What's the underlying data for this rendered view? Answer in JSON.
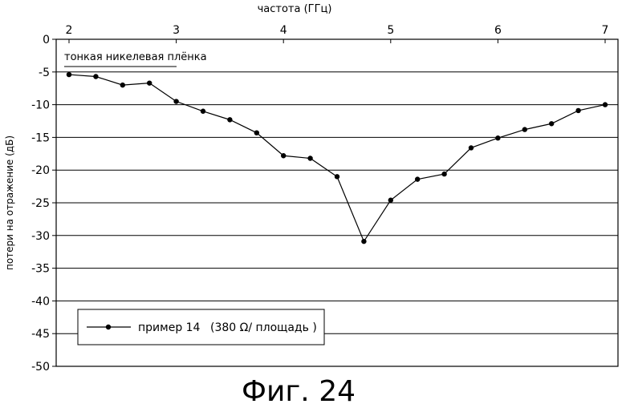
{
  "chart_data": {
    "type": "line",
    "xlabel": "частота (ГГц)",
    "ylabel": "потери на отражение (дБ)",
    "xlim": [
      2,
      7
    ],
    "ylim": [
      -50,
      0
    ],
    "x_ticks": [
      2,
      3,
      4,
      5,
      6,
      7
    ],
    "y_ticks": [
      0,
      -5,
      -10,
      -15,
      -20,
      -25,
      -30,
      -35,
      -40,
      -45,
      -50
    ],
    "y_tick_labels": [
      "0",
      "-5",
      "-10",
      "-15",
      "-20",
      "-25",
      "-30",
      "-35",
      "-40",
      "-45",
      "-50"
    ],
    "grid": "horizontal",
    "x_axis_position": "top",
    "annotation": "тонкая никелевая плёнка",
    "legend": {
      "placement": "bottom-left",
      "entry_main": "пример 14",
      "entry_detail": "(380 Ω/ площадь )"
    },
    "series": [
      {
        "name": "пример 14 (380 Ω/ площадь )",
        "x": [
          2.0,
          2.25,
          2.5,
          2.75,
          3.0,
          3.25,
          3.5,
          3.75,
          4.0,
          4.25,
          4.5,
          4.75,
          5.0,
          5.25,
          5.5,
          5.75,
          6.0,
          6.25,
          6.5,
          6.75,
          7.0
        ],
        "y": [
          -5.4,
          -5.7,
          -7.0,
          -6.7,
          -9.5,
          -11.0,
          -12.3,
          -14.3,
          -17.8,
          -18.2,
          -21.0,
          -30.9,
          -24.6,
          -21.4,
          -20.6,
          -16.6,
          -15.1,
          -13.8,
          -12.9,
          -10.9,
          -10.0
        ]
      }
    ]
  },
  "caption": "Фиг. 24"
}
